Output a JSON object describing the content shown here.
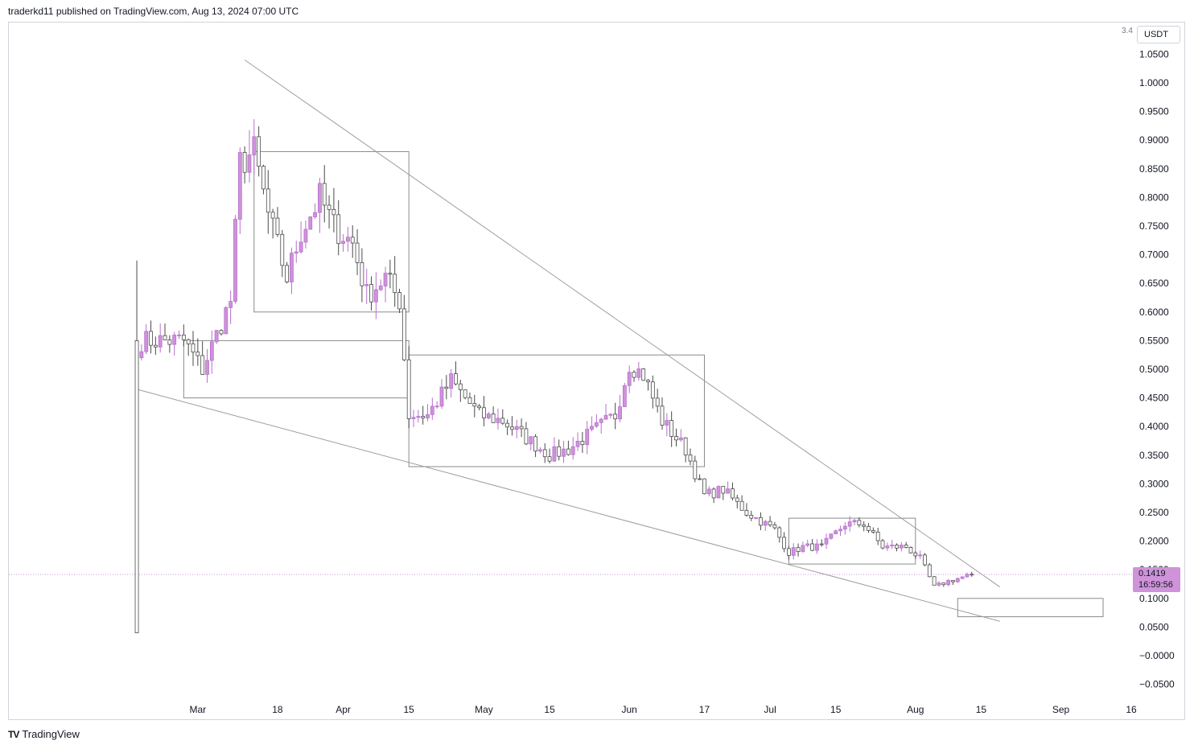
{
  "header": {
    "text": "traderkd11 published on TradingView.com, Aug 13, 2024 07:00 UTC"
  },
  "currency": {
    "label": "USDT",
    "scale_hint": "3.4"
  },
  "price_tag": {
    "price": "0.1419",
    "countdown": "16:59:56"
  },
  "footer": {
    "logo": "TV",
    "brand": "TradingView"
  },
  "colors": {
    "bull": "#ce93d8",
    "bear": "#ffffff",
    "wick": "#4a4a4a",
    "bull_wick": "#b86fd0",
    "trendline": "#9e9e9e",
    "box": "#8a8a8a",
    "last_price_line": "#ce93d8"
  },
  "chart_data": {
    "type": "candlestick",
    "interval": "1D",
    "ylim": [
      -0.07,
      1.08
    ],
    "y_ticks": [
      "1.0500",
      "1.0000",
      "0.9500",
      "0.9000",
      "0.8500",
      "0.8000",
      "0.7500",
      "0.7000",
      "0.6500",
      "0.6000",
      "0.5500",
      "0.5000",
      "0.4500",
      "0.4000",
      "0.3500",
      "0.3000",
      "0.2500",
      "0.2000",
      "0.1500",
      "0.1000",
      "0.0500",
      "−0.0000",
      "−0.0500"
    ],
    "x_ticks": [
      "Mar",
      "18",
      "Apr",
      "15",
      "May",
      "15",
      "Jun",
      "17",
      "Jul",
      "15",
      "Aug",
      "15",
      "Sep",
      "16"
    ],
    "last_price": 0.1419,
    "anchors": [
      {
        "date": "2024-02-18",
        "price": 0.55
      },
      {
        "date": "2024-02-27",
        "price": 0.55
      },
      {
        "date": "2024-03-02",
        "price": 0.5
      },
      {
        "date": "2024-03-06",
        "price": 0.58
      },
      {
        "date": "2024-03-08",
        "price": 0.62
      },
      {
        "date": "2024-03-10",
        "price": 0.86
      },
      {
        "date": "2024-03-13",
        "price": 0.88
      },
      {
        "date": "2024-03-16",
        "price": 0.77
      },
      {
        "date": "2024-03-20",
        "price": 0.66
      },
      {
        "date": "2024-03-23",
        "price": 0.74
      },
      {
        "date": "2024-03-27",
        "price": 0.8
      },
      {
        "date": "2024-03-30",
        "price": 0.75
      },
      {
        "date": "2024-04-03",
        "price": 0.72
      },
      {
        "date": "2024-04-06",
        "price": 0.63
      },
      {
        "date": "2024-04-10",
        "price": 0.66
      },
      {
        "date": "2024-04-13",
        "price": 0.62
      },
      {
        "date": "2024-04-15",
        "price": 0.42
      },
      {
        "date": "2024-04-19",
        "price": 0.42
      },
      {
        "date": "2024-04-24",
        "price": 0.48
      },
      {
        "date": "2024-04-30",
        "price": 0.42
      },
      {
        "date": "2024-05-05",
        "price": 0.41
      },
      {
        "date": "2024-05-10",
        "price": 0.38
      },
      {
        "date": "2024-05-15",
        "price": 0.35
      },
      {
        "date": "2024-05-19",
        "price": 0.36
      },
      {
        "date": "2024-05-24",
        "price": 0.39
      },
      {
        "date": "2024-05-29",
        "price": 0.42
      },
      {
        "date": "2024-06-01",
        "price": 0.51
      },
      {
        "date": "2024-06-04",
        "price": 0.49
      },
      {
        "date": "2024-06-08",
        "price": 0.41
      },
      {
        "date": "2024-06-13",
        "price": 0.36
      },
      {
        "date": "2024-06-17",
        "price": 0.28
      },
      {
        "date": "2024-06-21",
        "price": 0.29
      },
      {
        "date": "2024-06-26",
        "price": 0.25
      },
      {
        "date": "2024-07-02",
        "price": 0.22
      },
      {
        "date": "2024-07-05",
        "price": 0.18
      },
      {
        "date": "2024-07-08",
        "price": 0.19
      },
      {
        "date": "2024-07-12",
        "price": 0.19
      },
      {
        "date": "2024-07-17",
        "price": 0.23
      },
      {
        "date": "2024-07-21",
        "price": 0.23
      },
      {
        "date": "2024-07-25",
        "price": 0.19
      },
      {
        "date": "2024-07-30",
        "price": 0.19
      },
      {
        "date": "2024-08-02",
        "price": 0.17
      },
      {
        "date": "2024-08-05",
        "price": 0.12
      },
      {
        "date": "2024-08-08",
        "price": 0.13
      },
      {
        "date": "2024-08-13",
        "price": 0.1419
      }
    ],
    "listing_spike": {
      "date": "2024-02-17",
      "open": 0.55,
      "high": 0.69,
      "low": 0.04,
      "close": 0.04
    },
    "trendlines": [
      {
        "from": {
          "date": "2024-03-11",
          "price": 1.04
        },
        "to": {
          "date": "2024-08-19",
          "price": 0.12
        }
      },
      {
        "from": {
          "date": "2024-02-17",
          "price": 0.465
        },
        "to": {
          "date": "2024-08-19",
          "price": 0.06
        }
      }
    ],
    "boxes": [
      {
        "from": {
          "date": "2024-03-13",
          "price": 0.88
        },
        "to": {
          "date": "2024-04-15",
          "price": 0.6
        }
      },
      {
        "from": {
          "date": "2024-02-27",
          "price": 0.55
        },
        "to": {
          "date": "2024-04-15",
          "price": 0.45
        }
      },
      {
        "from": {
          "date": "2024-04-15",
          "price": 0.525
        },
        "to": {
          "date": "2024-06-17",
          "price": 0.33
        }
      },
      {
        "from": {
          "date": "2024-07-05",
          "price": 0.24
        },
        "to": {
          "date": "2024-08-01",
          "price": 0.16
        }
      },
      {
        "from": {
          "date": "2024-08-10",
          "price": 0.1
        },
        "to": {
          "date": "2024-09-10",
          "price": 0.068
        }
      }
    ]
  }
}
